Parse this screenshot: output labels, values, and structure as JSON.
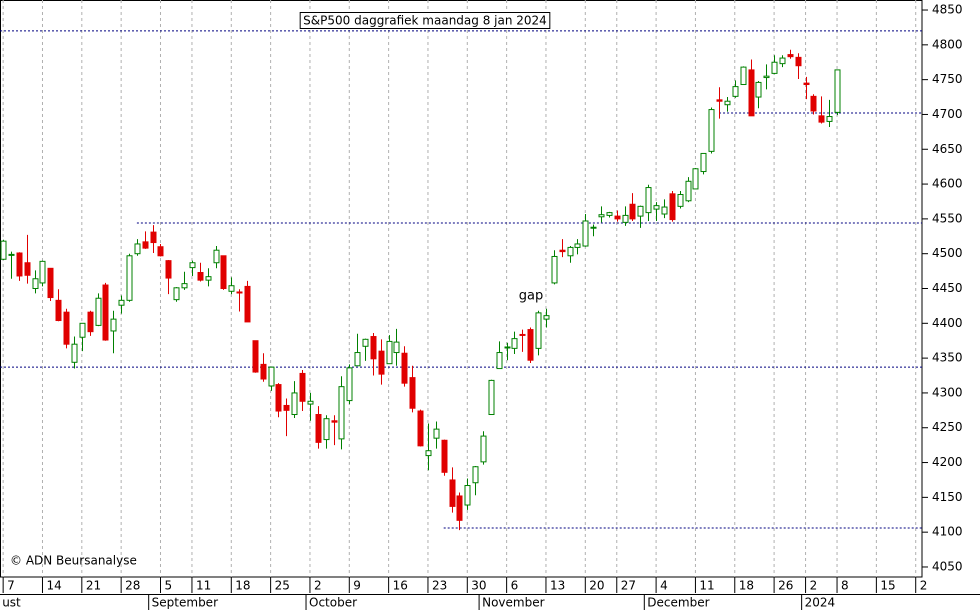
{
  "chart_data": {
    "type": "candlestick",
    "title": "S&P500 daggrafiek maandag 8 jan 2024",
    "annotation": "gap",
    "copyright": "© ADN Beursanalyse",
    "open": [
      4492,
      4498,
      4501,
      4487,
      4450,
      4458,
      4479,
      4433,
      4416,
      4344,
      4380,
      4416,
      4397,
      4455,
      4389,
      4426,
      4433,
      4500,
      4517,
      4531,
      4510,
      4490,
      4434,
      4451,
      4480,
      4473,
      4462,
      4487,
      4497,
      4446,
      4445,
      4453,
      4375,
      4341,
      4310,
      4312,
      4282,
      4269,
      4328,
      4284,
      4269,
      4233,
      4260,
      4234,
      4289,
      4339,
      4367,
      4381,
      4360,
      4342,
      4358,
      4357,
      4322,
      4274,
      4210,
      4235,
      4232,
      4175,
      4152,
      4139,
      4171,
      4201,
      4269,
      4335,
      4365,
      4364,
      4384,
      4391,
      4364,
      4406,
      4458,
      4505,
      4497,
      4509,
      4511,
      4538,
      4553,
      4555,
      4554,
      4545,
      4571,
      4554,
      4559,
      4564,
      4557,
      4586,
      4568,
      4576,
      4593,
      4618,
      4647,
      4721,
      4714,
      4726,
      4743,
      4764,
      4725,
      4753,
      4759,
      4773,
      4786,
      4782,
      4745,
      4726,
      4698,
      4690,
      4703
    ],
    "high": [
      4520,
      4503,
      4502,
      4527,
      4476,
      4490,
      4479,
      4449,
      4421,
      4381,
      4400,
      4418,
      4443,
      4458,
      4418,
      4440,
      4500,
      4521,
      4532,
      4541,
      4514,
      4491,
      4452,
      4474,
      4490,
      4487,
      4479,
      4511,
      4497,
      4466,
      4449,
      4461,
      4375,
      4357,
      4338,
      4314,
      4292,
      4317,
      4333,
      4300,
      4281,
      4268,
      4268,
      4324,
      4341,
      4385,
      4378,
      4386,
      4377,
      4383,
      4392,
      4367,
      4339,
      4276,
      4256,
      4259,
      4233,
      4193,
      4157,
      4177,
      4195,
      4245,
      4319,
      4374,
      4372,
      4388,
      4391,
      4394,
      4418,
      4421,
      4505,
      4521,
      4511,
      4521,
      4557,
      4542,
      4568,
      4560,
      4562,
      4568,
      4587,
      4569,
      4599,
      4574,
      4578,
      4590,
      4590,
      4610,
      4623,
      4644,
      4710,
      4739,
      4725,
      4749,
      4769,
      4779,
      4748,
      4772,
      4785,
      4785,
      4793,
      4788,
      4754,
      4729,
      4726,
      4721,
      4764
    ],
    "low": [
      4491,
      4464,
      4461,
      4457,
      4443,
      4453,
      4432,
      4403,
      4364,
      4335,
      4360,
      4382,
      4396,
      4375,
      4357,
      4414,
      4431,
      4497,
      4507,
      4501,
      4496,
      4442,
      4431,
      4448,
      4468,
      4460,
      4453,
      4479,
      4448,
      4442,
      4417,
      4402,
      4329,
      4316,
      4303,
      4265,
      4238,
      4264,
      4274,
      4260,
      4220,
      4220,
      4225,
      4219,
      4284,
      4339,
      4346,
      4325,
      4312,
      4342,
      4339,
      4309,
      4272,
      4223,
      4189,
      4220,
      4181,
      4128,
      4103,
      4132,
      4153,
      4197,
      4269,
      4335,
      4347,
      4356,
      4359,
      4343,
      4354,
      4394,
      4456,
      4495,
      4487,
      4499,
      4510,
      4525,
      4545,
      4552,
      4546,
      4540,
      4547,
      4537,
      4547,
      4547,
      4551,
      4546,
      4565,
      4574,
      4593,
      4614,
      4644,
      4694,
      4704,
      4724,
      4743,
      4699,
      4709,
      4736,
      4758,
      4768,
      4780,
      4751,
      4722,
      4700,
      4687,
      4682,
      4699
    ],
    "close": [
      4518,
      4499,
      4468,
      4469,
      4464,
      4489,
      4437,
      4404,
      4370,
      4370,
      4400,
      4388,
      4436,
      4376,
      4406,
      4433,
      4497,
      4514,
      4508,
      4516,
      4497,
      4465,
      4451,
      4457,
      4487,
      4462,
      4467,
      4505,
      4450,
      4454,
      4444,
      4402,
      4330,
      4320,
      4337,
      4274,
      4275,
      4300,
      4288,
      4288,
      4229,
      4263,
      4258,
      4309,
      4336,
      4358,
      4377,
      4349,
      4327,
      4374,
      4373,
      4314,
      4278,
      4224,
      4217,
      4248,
      4186,
      4137,
      4117,
      4167,
      4194,
      4238,
      4318,
      4358,
      4366,
      4378,
      4383,
      4347,
      4415,
      4411,
      4496,
      4503,
      4509,
      4514,
      4547,
      4538,
      4556,
      4559,
      4550,
      4555,
      4550,
      4568,
      4595,
      4569,
      4567,
      4549,
      4585,
      4604,
      4622,
      4644,
      4707,
      4719,
      4719,
      4740,
      4768,
      4698,
      4746,
      4755,
      4775,
      4781,
      4783,
      4770,
      4743,
      4705,
      4689,
      4697,
      4764
    ],
    "up_color": "#008000",
    "down_color": "#e00000",
    "xlim": [
      -0.4,
      116.8
    ],
    "xticks": [
      {
        "value": 0,
        "label": "7"
      },
      {
        "value": 5,
        "label": "14"
      },
      {
        "value": 10,
        "label": "21"
      },
      {
        "value": 15,
        "label": "28"
      },
      {
        "value": 20,
        "label": "5"
      },
      {
        "value": 24,
        "label": "11"
      },
      {
        "value": 29,
        "label": "18"
      },
      {
        "value": 34,
        "label": "25"
      },
      {
        "value": 39,
        "label": "2"
      },
      {
        "value": 44,
        "label": "9"
      },
      {
        "value": 49,
        "label": "16"
      },
      {
        "value": 54,
        "label": "23"
      },
      {
        "value": 59,
        "label": "30"
      },
      {
        "value": 64,
        "label": "6"
      },
      {
        "value": 69,
        "label": "13"
      },
      {
        "value": 74,
        "label": "20"
      },
      {
        "value": 78,
        "label": "27"
      },
      {
        "value": 83,
        "label": "4"
      },
      {
        "value": 88,
        "label": "11"
      },
      {
        "value": 93,
        "label": "18"
      },
      {
        "value": 98,
        "label": "26"
      },
      {
        "value": 102,
        "label": "2"
      },
      {
        "value": 106,
        "label": "8"
      },
      {
        "value": 111,
        "label": "15"
      },
      {
        "value": 116,
        "label": "2"
      }
    ],
    "month_ticks": [
      {
        "value": 0,
        "label": "ust"
      },
      {
        "value": 19,
        "label": "September"
      },
      {
        "value": 39,
        "label": "October"
      },
      {
        "value": 61,
        "label": "November"
      },
      {
        "value": 82,
        "label": "December"
      },
      {
        "value": 102,
        "label": "2024"
      }
    ],
    "ylim": [
      4035.6,
      4864.4
    ],
    "yticks": [
      4050,
      4100,
      4150,
      4200,
      4250,
      4300,
      4350,
      4400,
      4450,
      4500,
      4550,
      4600,
      4650,
      4700,
      4750,
      4800,
      4850
    ],
    "reference_lines": [
      4820,
      4544,
      4337,
      4702,
      4106
    ],
    "reference_color": "#000080",
    "grid": true
  }
}
